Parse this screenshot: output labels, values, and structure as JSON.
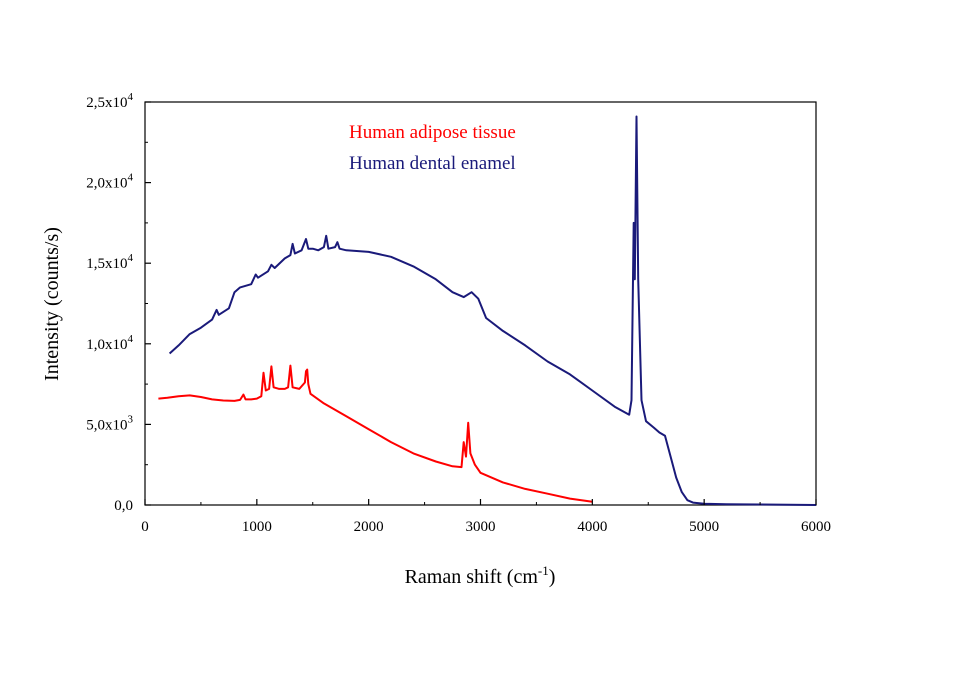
{
  "chart_data": {
    "type": "line",
    "xlabel": "Raman shift (cm",
    "xlabel_sup": "-1",
    "xlabel_close": ")",
    "ylabel": "Intensity (counts/s)",
    "xlim": [
      0,
      6000
    ],
    "ylim": [
      0,
      25000
    ],
    "x_ticks": [
      0,
      1000,
      2000,
      3000,
      4000,
      5000,
      6000
    ],
    "y_ticks": [
      {
        "value": 0,
        "base": "0,0",
        "exp": ""
      },
      {
        "value": 5000,
        "base": "5,0x10",
        "exp": "3"
      },
      {
        "value": 10000,
        "base": "1,0x10",
        "exp": "4"
      },
      {
        "value": 15000,
        "base": "1,5x10",
        "exp": "4"
      },
      {
        "value": 20000,
        "base": "2,0x10",
        "exp": "4"
      },
      {
        "value": 25000,
        "base": "2,5x10",
        "exp": "4"
      }
    ],
    "grid": false,
    "legend_position": "top-center",
    "series": [
      {
        "name": "Human  adipose tissue",
        "color": "#ff0000",
        "points": [
          [
            120,
            6600
          ],
          [
            200,
            6650
          ],
          [
            300,
            6750
          ],
          [
            400,
            6800
          ],
          [
            500,
            6700
          ],
          [
            600,
            6550
          ],
          [
            700,
            6480
          ],
          [
            800,
            6460
          ],
          [
            850,
            6520
          ],
          [
            880,
            6850
          ],
          [
            900,
            6550
          ],
          [
            950,
            6550
          ],
          [
            1000,
            6600
          ],
          [
            1040,
            6750
          ],
          [
            1060,
            8200
          ],
          [
            1080,
            7100
          ],
          [
            1110,
            7200
          ],
          [
            1130,
            8600
          ],
          [
            1150,
            7300
          ],
          [
            1200,
            7200
          ],
          [
            1250,
            7200
          ],
          [
            1280,
            7300
          ],
          [
            1300,
            8650
          ],
          [
            1320,
            7300
          ],
          [
            1380,
            7200
          ],
          [
            1430,
            7600
          ],
          [
            1440,
            8300
          ],
          [
            1450,
            8400
          ],
          [
            1460,
            7500
          ],
          [
            1480,
            6900
          ],
          [
            1600,
            6300
          ],
          [
            1800,
            5500
          ],
          [
            2000,
            4700
          ],
          [
            2200,
            3900
          ],
          [
            2400,
            3200
          ],
          [
            2600,
            2700
          ],
          [
            2750,
            2400
          ],
          [
            2830,
            2350
          ],
          [
            2850,
            3900
          ],
          [
            2870,
            3000
          ],
          [
            2890,
            5100
          ],
          [
            2910,
            3200
          ],
          [
            2950,
            2500
          ],
          [
            3000,
            2000
          ],
          [
            3200,
            1400
          ],
          [
            3400,
            1000
          ],
          [
            3600,
            700
          ],
          [
            3800,
            400
          ],
          [
            4000,
            200
          ]
        ]
      },
      {
        "name": "Human dental enamel",
        "color": "#1a1a7a",
        "points": [
          [
            220,
            9400
          ],
          [
            300,
            9900
          ],
          [
            400,
            10600
          ],
          [
            500,
            11000
          ],
          [
            600,
            11500
          ],
          [
            640,
            12100
          ],
          [
            660,
            11800
          ],
          [
            750,
            12200
          ],
          [
            800,
            13200
          ],
          [
            850,
            13500
          ],
          [
            950,
            13700
          ],
          [
            990,
            14300
          ],
          [
            1010,
            14100
          ],
          [
            1100,
            14500
          ],
          [
            1130,
            14900
          ],
          [
            1160,
            14700
          ],
          [
            1250,
            15300
          ],
          [
            1300,
            15500
          ],
          [
            1320,
            16200
          ],
          [
            1340,
            15600
          ],
          [
            1400,
            15800
          ],
          [
            1440,
            16500
          ],
          [
            1460,
            15900
          ],
          [
            1500,
            15900
          ],
          [
            1550,
            15800
          ],
          [
            1600,
            16000
          ],
          [
            1620,
            16700
          ],
          [
            1640,
            15900
          ],
          [
            1700,
            16000
          ],
          [
            1720,
            16300
          ],
          [
            1740,
            15900
          ],
          [
            1800,
            15800
          ],
          [
            2000,
            15700
          ],
          [
            2200,
            15400
          ],
          [
            2400,
            14800
          ],
          [
            2600,
            14000
          ],
          [
            2750,
            13200
          ],
          [
            2850,
            12900
          ],
          [
            2920,
            13200
          ],
          [
            2980,
            12800
          ],
          [
            3050,
            11600
          ],
          [
            3200,
            10800
          ],
          [
            3400,
            9900
          ],
          [
            3600,
            8900
          ],
          [
            3800,
            8100
          ],
          [
            4000,
            7100
          ],
          [
            4200,
            6100
          ],
          [
            4330,
            5600
          ],
          [
            4350,
            6500
          ],
          [
            4370,
            17500
          ],
          [
            4380,
            14000
          ],
          [
            4395,
            24100
          ],
          [
            4410,
            14000
          ],
          [
            4440,
            6500
          ],
          [
            4480,
            5200
          ],
          [
            4550,
            4800
          ],
          [
            4600,
            4500
          ],
          [
            4650,
            4300
          ],
          [
            4700,
            3000
          ],
          [
            4750,
            1700
          ],
          [
            4800,
            800
          ],
          [
            4850,
            300
          ],
          [
            4900,
            150
          ],
          [
            5000,
            80
          ],
          [
            5200,
            50
          ],
          [
            5500,
            30
          ],
          [
            6000,
            0
          ]
        ]
      }
    ]
  }
}
